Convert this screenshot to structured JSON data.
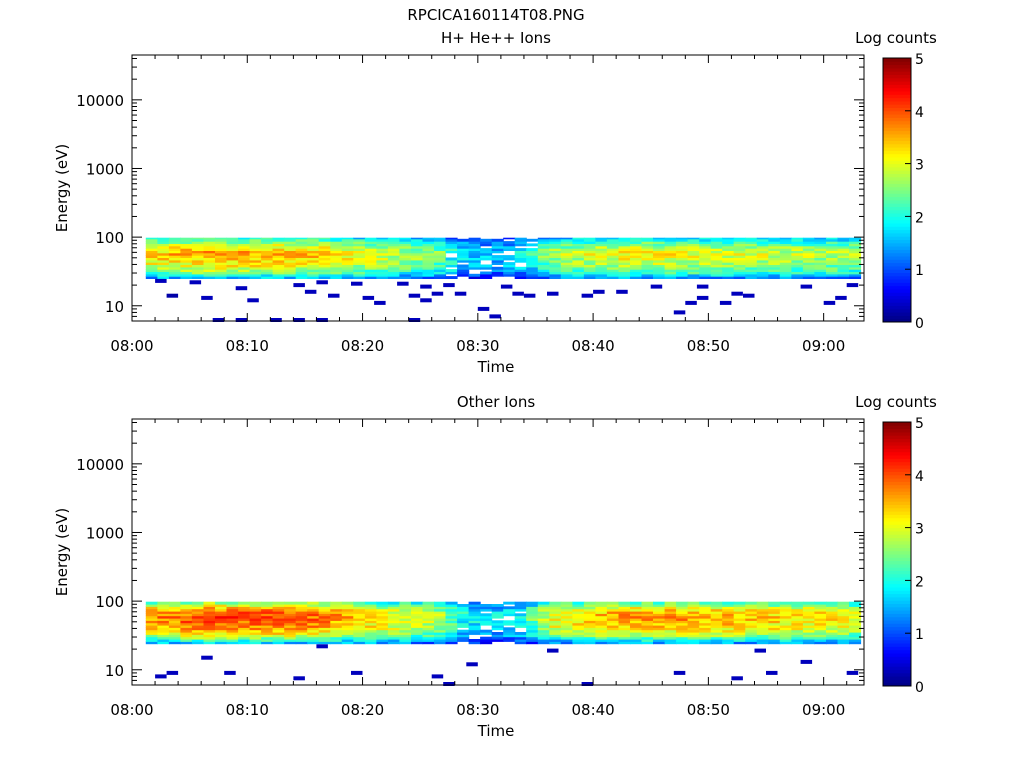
{
  "figure_title": "RPCICA160114T08.PNG",
  "colors": {
    "axis": "#000000",
    "background": "#ffffff"
  },
  "colorscale": [
    "#00007f",
    "#0000ff",
    "#007fff",
    "#00ffff",
    "#7fff7f",
    "#ffff00",
    "#ff7f00",
    "#ff0000",
    "#7f0000"
  ],
  "chart_data": [
    {
      "type": "heatmap",
      "title": "H+ He++ Ions",
      "xlabel": "Time",
      "ylabel": "Energy (eV)",
      "x_ticks": [
        "08:00",
        "08:10",
        "08:20",
        "08:30",
        "08:40",
        "08:50",
        "09:00"
      ],
      "xlim_minutes": [
        0,
        63.5
      ],
      "y_scale": "log",
      "ylim": [
        6,
        45000
      ],
      "y_ticks": [
        {
          "value": 10,
          "label": "10"
        },
        {
          "value": 100,
          "label": "100"
        },
        {
          "value": 1000,
          "label": "1000"
        },
        {
          "value": 10000,
          "label": "10000"
        }
      ],
      "colorbar": {
        "label": "Log counts",
        "min": 0,
        "max": 5,
        "ticks": [
          "0",
          "1",
          "2",
          "3",
          "4",
          "5"
        ]
      },
      "band": {
        "energy_min_eV": 25,
        "energy_max_eV": 98,
        "time_start_minutes": 1.2,
        "time_end_minutes": 63
      },
      "band_level_profile_by_time": [
        [
          0,
          2.9
        ],
        [
          6,
          3.2
        ],
        [
          14,
          3.1
        ],
        [
          20,
          2.7
        ],
        [
          26,
          2.3
        ],
        [
          28,
          1.6
        ],
        [
          30,
          1.4
        ],
        [
          33,
          1.6
        ],
        [
          36,
          2.4
        ],
        [
          42,
          2.8
        ],
        [
          48,
          2.7
        ],
        [
          54,
          2.6
        ],
        [
          60,
          2.5
        ],
        [
          63,
          2.4
        ]
      ],
      "band_level_profile_by_energy": [
        [
          25,
          1.5
        ],
        [
          30,
          2.5
        ],
        [
          38,
          3.0
        ],
        [
          55,
          3.4
        ],
        [
          70,
          3.0
        ],
        [
          85,
          2.3
        ],
        [
          98,
          1.8
        ]
      ],
      "sparse_points": [
        {
          "t": 2,
          "e": 23,
          "v": 0.3
        },
        {
          "t": 3,
          "e": 14,
          "v": 0.2
        },
        {
          "t": 5,
          "e": 22,
          "v": 0.3
        },
        {
          "t": 6,
          "e": 13,
          "v": 0.3
        },
        {
          "t": 7,
          "e": 6.2,
          "v": 0.3
        },
        {
          "t": 9,
          "e": 6.2,
          "v": 0.3
        },
        {
          "t": 9,
          "e": 18,
          "v": 0.3
        },
        {
          "t": 10,
          "e": 12,
          "v": 0.3
        },
        {
          "t": 12,
          "e": 6.2,
          "v": 0.3
        },
        {
          "t": 14,
          "e": 20,
          "v": 0.3
        },
        {
          "t": 14,
          "e": 6.2,
          "v": 0.3
        },
        {
          "t": 15,
          "e": 16,
          "v": 0.3
        },
        {
          "t": 16,
          "e": 22,
          "v": 0.3
        },
        {
          "t": 16,
          "e": 6.2,
          "v": 0.3
        },
        {
          "t": 17,
          "e": 14,
          "v": 0.3
        },
        {
          "t": 19,
          "e": 21,
          "v": 0.3
        },
        {
          "t": 20,
          "e": 13,
          "v": 0.3
        },
        {
          "t": 21,
          "e": 11,
          "v": 0.3
        },
        {
          "t": 23,
          "e": 21,
          "v": 0.3
        },
        {
          "t": 24,
          "e": 14,
          "v": 0.3
        },
        {
          "t": 24,
          "e": 6.2,
          "v": 0.3
        },
        {
          "t": 25,
          "e": 19,
          "v": 0.3
        },
        {
          "t": 25,
          "e": 12,
          "v": 0.3
        },
        {
          "t": 26,
          "e": 15,
          "v": 0.3
        },
        {
          "t": 27,
          "e": 20,
          "v": 0.3
        },
        {
          "t": 28,
          "e": 15,
          "v": 0.3
        },
        {
          "t": 30,
          "e": 9,
          "v": 0.3
        },
        {
          "t": 31,
          "e": 7,
          "v": 0.3
        },
        {
          "t": 32,
          "e": 19,
          "v": 0.3
        },
        {
          "t": 33,
          "e": 15,
          "v": 0.3
        },
        {
          "t": 34,
          "e": 14,
          "v": 0.3
        },
        {
          "t": 36,
          "e": 15,
          "v": 0.3
        },
        {
          "t": 39,
          "e": 14,
          "v": 0.3
        },
        {
          "t": 40,
          "e": 16,
          "v": 0.3
        },
        {
          "t": 42,
          "e": 16,
          "v": 0.3
        },
        {
          "t": 45,
          "e": 19,
          "v": 0.3
        },
        {
          "t": 47,
          "e": 8,
          "v": 0.3
        },
        {
          "t": 48,
          "e": 11,
          "v": 0.3
        },
        {
          "t": 49,
          "e": 19,
          "v": 0.3
        },
        {
          "t": 49,
          "e": 13,
          "v": 0.3
        },
        {
          "t": 51,
          "e": 11,
          "v": 0.3
        },
        {
          "t": 52,
          "e": 15,
          "v": 0.3
        },
        {
          "t": 53,
          "e": 14,
          "v": 0.3
        },
        {
          "t": 58,
          "e": 19,
          "v": 0.3
        },
        {
          "t": 60,
          "e": 11,
          "v": 0.3
        },
        {
          "t": 61,
          "e": 13,
          "v": 0.3
        },
        {
          "t": 62,
          "e": 20,
          "v": 0.3
        }
      ]
    },
    {
      "type": "heatmap",
      "title": "Other Ions",
      "xlabel": "Time",
      "ylabel": "Energy (eV)",
      "x_ticks": [
        "08:00",
        "08:10",
        "08:20",
        "08:30",
        "08:40",
        "08:50",
        "09:00"
      ],
      "xlim_minutes": [
        0,
        63.5
      ],
      "y_scale": "log",
      "ylim": [
        6,
        45000
      ],
      "y_ticks": [
        {
          "value": 10,
          "label": "10"
        },
        {
          "value": 100,
          "label": "100"
        },
        {
          "value": 1000,
          "label": "1000"
        },
        {
          "value": 10000,
          "label": "10000"
        }
      ],
      "colorbar": {
        "label": "Log counts",
        "min": 0,
        "max": 5,
        "ticks": [
          "0",
          "1",
          "2",
          "3",
          "4",
          "5"
        ]
      },
      "band": {
        "energy_min_eV": 24,
        "energy_max_eV": 98,
        "time_start_minutes": 1.2,
        "time_end_minutes": 63
      },
      "band_level_profile_by_time": [
        [
          0,
          3.2
        ],
        [
          6,
          3.6
        ],
        [
          14,
          3.5
        ],
        [
          20,
          3.0
        ],
        [
          26,
          2.5
        ],
        [
          28,
          1.8
        ],
        [
          30,
          1.5
        ],
        [
          33,
          1.7
        ],
        [
          36,
          2.8
        ],
        [
          42,
          3.2
        ],
        [
          48,
          3.2
        ],
        [
          54,
          3.0
        ],
        [
          60,
          2.9
        ],
        [
          63,
          2.6
        ]
      ],
      "band_level_profile_by_energy": [
        [
          24,
          1.4
        ],
        [
          30,
          2.5
        ],
        [
          38,
          3.1
        ],
        [
          55,
          3.4
        ],
        [
          70,
          3.2
        ],
        [
          85,
          2.5
        ],
        [
          98,
          1.9
        ]
      ],
      "sparse_points": [
        {
          "t": 2,
          "e": 8,
          "v": 0.3
        },
        {
          "t": 3,
          "e": 9,
          "v": 0.3
        },
        {
          "t": 6,
          "e": 15,
          "v": 0.3
        },
        {
          "t": 8,
          "e": 9,
          "v": 0.3
        },
        {
          "t": 14,
          "e": 7.5,
          "v": 0.3
        },
        {
          "t": 16,
          "e": 22,
          "v": 0.3
        },
        {
          "t": 19,
          "e": 9,
          "v": 0.3
        },
        {
          "t": 26,
          "e": 8,
          "v": 0.3
        },
        {
          "t": 27,
          "e": 6.2,
          "v": 0.3
        },
        {
          "t": 29,
          "e": 12,
          "v": 0.3
        },
        {
          "t": 36,
          "e": 19,
          "v": 0.3
        },
        {
          "t": 39,
          "e": 6.2,
          "v": 0.3
        },
        {
          "t": 47,
          "e": 9,
          "v": 0.3
        },
        {
          "t": 52,
          "e": 7.5,
          "v": 0.3
        },
        {
          "t": 54,
          "e": 19,
          "v": 0.3
        },
        {
          "t": 55,
          "e": 9,
          "v": 0.3
        },
        {
          "t": 58,
          "e": 13,
          "v": 0.3
        },
        {
          "t": 62,
          "e": 9,
          "v": 0.3
        }
      ]
    }
  ]
}
